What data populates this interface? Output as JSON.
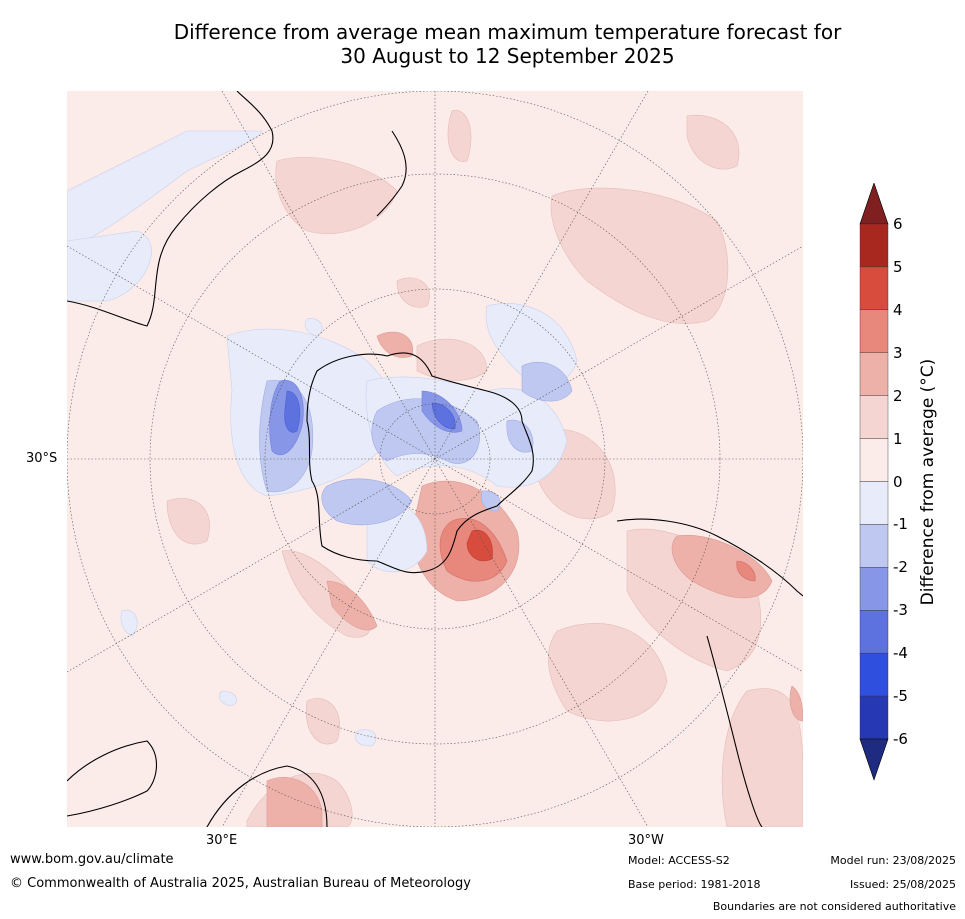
{
  "title": {
    "line1": "Difference from average mean maximum temperature forecast for",
    "line2": "30 August to 12 September 2025"
  },
  "axes": {
    "lat_label": "30°S",
    "lon_labels": [
      "30°E",
      "30°W"
    ]
  },
  "legend": {
    "title": "Difference from average (°C)",
    "ticks": [
      "6",
      "5",
      "4",
      "3",
      "2",
      "1",
      "0",
      "-1",
      "-2",
      "-3",
      "-4",
      "-5",
      "-6"
    ],
    "colors": {
      "gt6": "#7f1f1f",
      "5_6": "#a8281f",
      "4_5": "#d84c3e",
      "3_4": "#e8877c",
      "2_3": "#eeb1aa",
      "1_2": "#f5d5d2",
      "0_1": "#fbece9",
      "m1_0": "#e8ecfa",
      "m2_m1": "#bfc8f0",
      "m3_m2": "#8796e6",
      "m4_m3": "#5d72de",
      "m5_m4": "#2f50df",
      "m6_m5": "#2638b3",
      "lt_m6": "#1f2b80"
    }
  },
  "footer": {
    "url": "www.bom.gov.au/climate",
    "copyright": "© Commonwealth of Australia 2025, Australian Bureau of Meteorology",
    "model": "Model: ACCESS-S2",
    "base_period": "Base period: 1981-2018",
    "model_run": "Model run: 23/08/2025",
    "issued": "Issued: 25/08/2025",
    "note": "Boundaries are not considered authoritative"
  }
}
